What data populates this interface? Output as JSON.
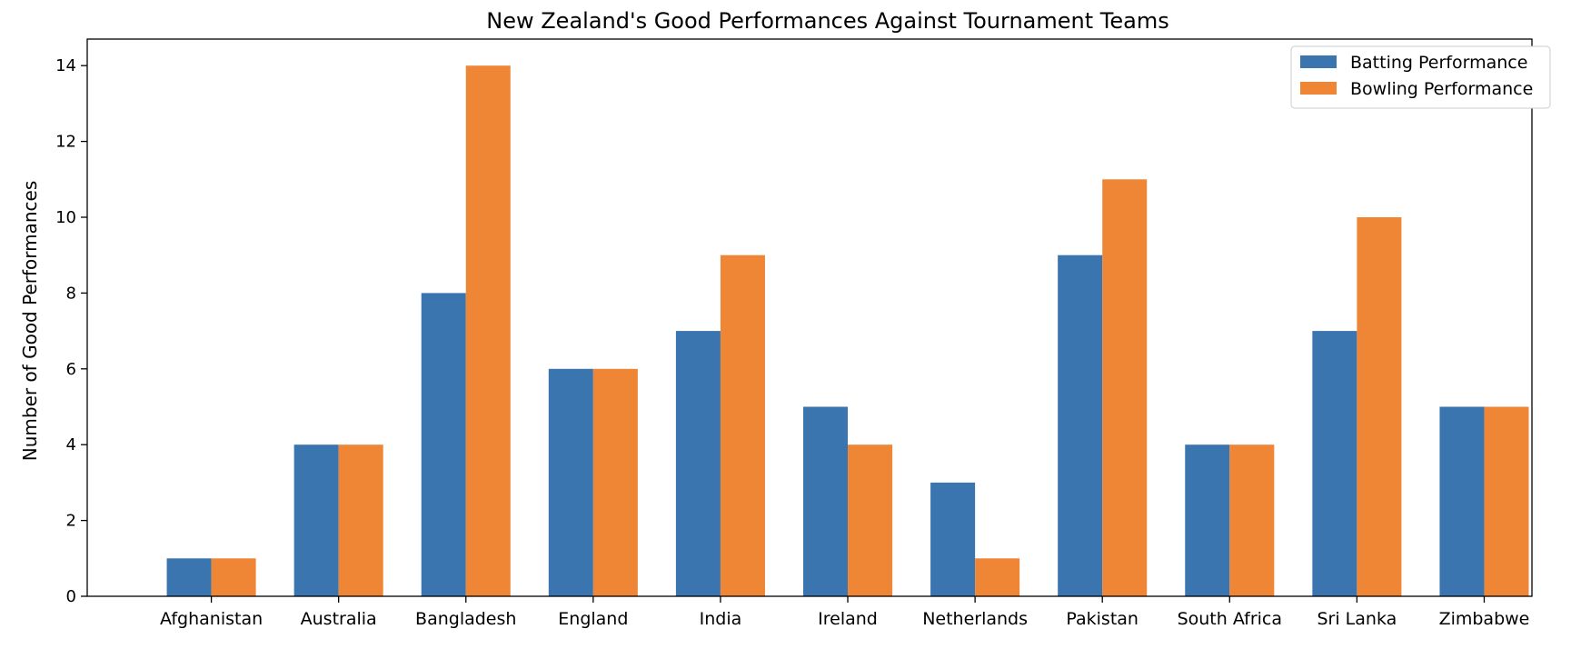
{
  "chart_data": {
    "type": "bar",
    "title": "New Zealand's Good Performances Against Tournament Teams",
    "xlabel": "",
    "ylabel": "Number of Good Performances",
    "categories": [
      "Afghanistan",
      "Australia",
      "Bangladesh",
      "England",
      "India",
      "Ireland",
      "Netherlands",
      "Pakistan",
      "South Africa",
      "Sri Lanka",
      "Zimbabwe"
    ],
    "series": [
      {
        "name": "Batting Performance",
        "color": "#3a75b0",
        "values": [
          1,
          4,
          8,
          6,
          7,
          5,
          3,
          9,
          4,
          7,
          5
        ]
      },
      {
        "name": "Bowling Performance",
        "color": "#ef8636",
        "values": [
          1,
          4,
          14,
          6,
          9,
          4,
          1,
          11,
          4,
          10,
          5
        ]
      }
    ],
    "ylim": [
      0,
      14.7
    ],
    "yticks": [
      0,
      2,
      4,
      6,
      8,
      10,
      12,
      14
    ],
    "grid": false,
    "legend_position": "top-right"
  }
}
